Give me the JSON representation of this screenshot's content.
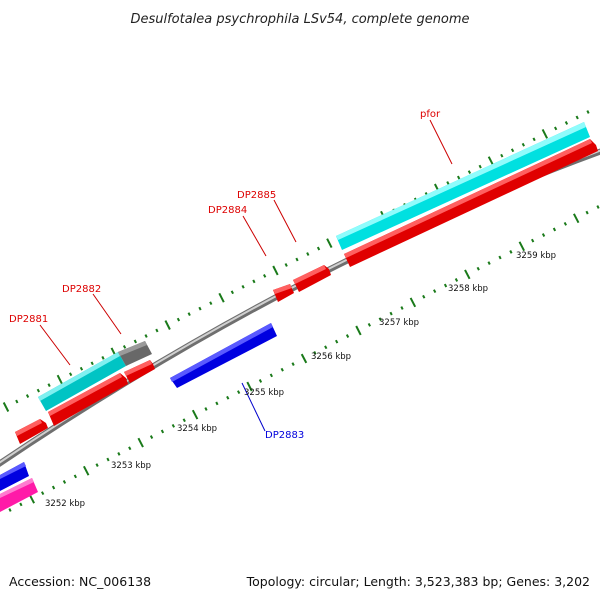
{
  "title": "Desulfotalea psychrophila LSv54, complete genome",
  "footer": {
    "accession": "Accession: NC_006138",
    "summary": "Topology: circular; Length: 3,523,383 bp; Genes: 3,202"
  },
  "kbp_labels": [
    "3252 kbp",
    "3253 kbp",
    "3254 kbp",
    "3255 kbp",
    "3256 kbp",
    "3257 kbp",
    "3258 kbp",
    "3259 kbp"
  ],
  "gene_labels": [
    "DP2881",
    "DP2882",
    "DP2884",
    "DP2885",
    "pfor",
    "DP2883"
  ],
  "colors": {
    "forward_label": "#dd0000",
    "reverse_label": "#0000dd",
    "forward_cds": "#ff0000",
    "reverse_cds": "#0000ff",
    "gene_cyan": "#00d8d8",
    "gene_grey": "#707070",
    "gene_magenta": "#ff20b0",
    "tick": "#1a7a1a",
    "backbone": "#9a9a9a"
  }
}
